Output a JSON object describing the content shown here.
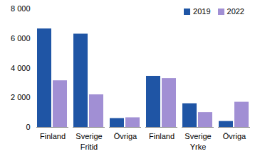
{
  "chart_data": {
    "type": "bar",
    "categories": [
      "Finland",
      "Sverige",
      "Övriga",
      "Finland",
      "Sverige",
      "Övriga"
    ],
    "groups": [
      "Fritid",
      "Fritid",
      "Fritid",
      "Yrke",
      "Yrke",
      "Yrke"
    ],
    "series": [
      {
        "name": "2019",
        "color": "#1f55a5",
        "values": [
          6650,
          6300,
          600,
          3450,
          1600,
          400
        ]
      },
      {
        "name": "2022",
        "color": "#a18fd4",
        "values": [
          3150,
          2200,
          650,
          3300,
          1000,
          1700
        ]
      }
    ],
    "ylim": [
      0,
      8000
    ],
    "yticks": [
      0,
      {
        "value": 2000,
        "label": "2 000"
      },
      {
        "value": 4000,
        "label": "4 000"
      },
      {
        "value": 6000,
        "label": "6 000"
      },
      {
        "value": 8000,
        "label": "8 000"
      }
    ],
    "grid": false,
    "legend": "top-right"
  }
}
